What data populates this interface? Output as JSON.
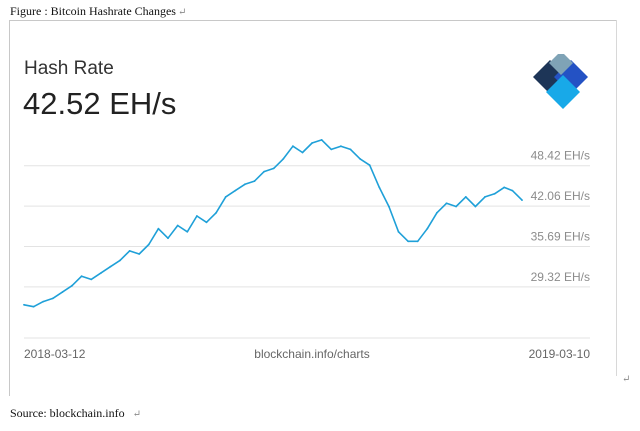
{
  "figure_caption": "Figure : Bitcoin Hashrate Changes",
  "source_caption": "Source: blockchain.info",
  "paragraph_mark": "↵",
  "chart_data": {
    "type": "line",
    "title": "Hash Rate",
    "current_value": "42.52 EH/s",
    "watermark": "blockchain.info/charts",
    "x_start_label": "2018-03-12",
    "x_end_label": "2019-03-10",
    "ylim": [
      20,
      55
    ],
    "grid": true,
    "y_ticks": [
      {
        "value": 48.42,
        "label": "48.42 EH/s"
      },
      {
        "value": 42.06,
        "label": "42.06 EH/s"
      },
      {
        "value": 35.69,
        "label": "35.69 EH/s"
      },
      {
        "value": 29.32,
        "label": "29.32 EH/s"
      }
    ],
    "series": [
      {
        "color": "#1fa0d8",
        "x": [
          "2018-03-12",
          "2018-03-19",
          "2018-03-26",
          "2018-04-02",
          "2018-04-09",
          "2018-04-16",
          "2018-04-23",
          "2018-04-30",
          "2018-05-07",
          "2018-05-14",
          "2018-05-21",
          "2018-05-28",
          "2018-06-04",
          "2018-06-11",
          "2018-06-18",
          "2018-06-25",
          "2018-07-02",
          "2018-07-09",
          "2018-07-16",
          "2018-07-23",
          "2018-07-30",
          "2018-08-06",
          "2018-08-13",
          "2018-08-20",
          "2018-08-27",
          "2018-09-03",
          "2018-09-10",
          "2018-09-17",
          "2018-09-24",
          "2018-10-01",
          "2018-10-08",
          "2018-10-15",
          "2018-10-22",
          "2018-10-29",
          "2018-11-05",
          "2018-11-12",
          "2018-11-19",
          "2018-11-26",
          "2018-12-03",
          "2018-12-10",
          "2018-12-17",
          "2018-12-24",
          "2018-12-31",
          "2019-01-07",
          "2019-01-14",
          "2019-01-21",
          "2019-01-28",
          "2019-02-04",
          "2019-02-11",
          "2019-02-18",
          "2019-02-25",
          "2019-03-03",
          "2019-03-10"
        ],
        "values": [
          26.5,
          26.2,
          27.0,
          27.5,
          28.5,
          29.5,
          31.0,
          30.5,
          31.5,
          32.5,
          33.5,
          35.0,
          34.5,
          36.0,
          38.5,
          37.0,
          39.0,
          38.0,
          40.5,
          39.5,
          41.0,
          43.5,
          44.5,
          45.5,
          46.0,
          47.5,
          48.0,
          49.5,
          51.5,
          50.5,
          52.0,
          52.5,
          51.0,
          51.5,
          51.0,
          49.5,
          48.5,
          45.0,
          42.0,
          38.0,
          36.5,
          36.5,
          38.5,
          41.0,
          42.5,
          42.0,
          43.5,
          42.0,
          43.5,
          44.0,
          45.0,
          44.5,
          43.0
        ]
      }
    ]
  }
}
